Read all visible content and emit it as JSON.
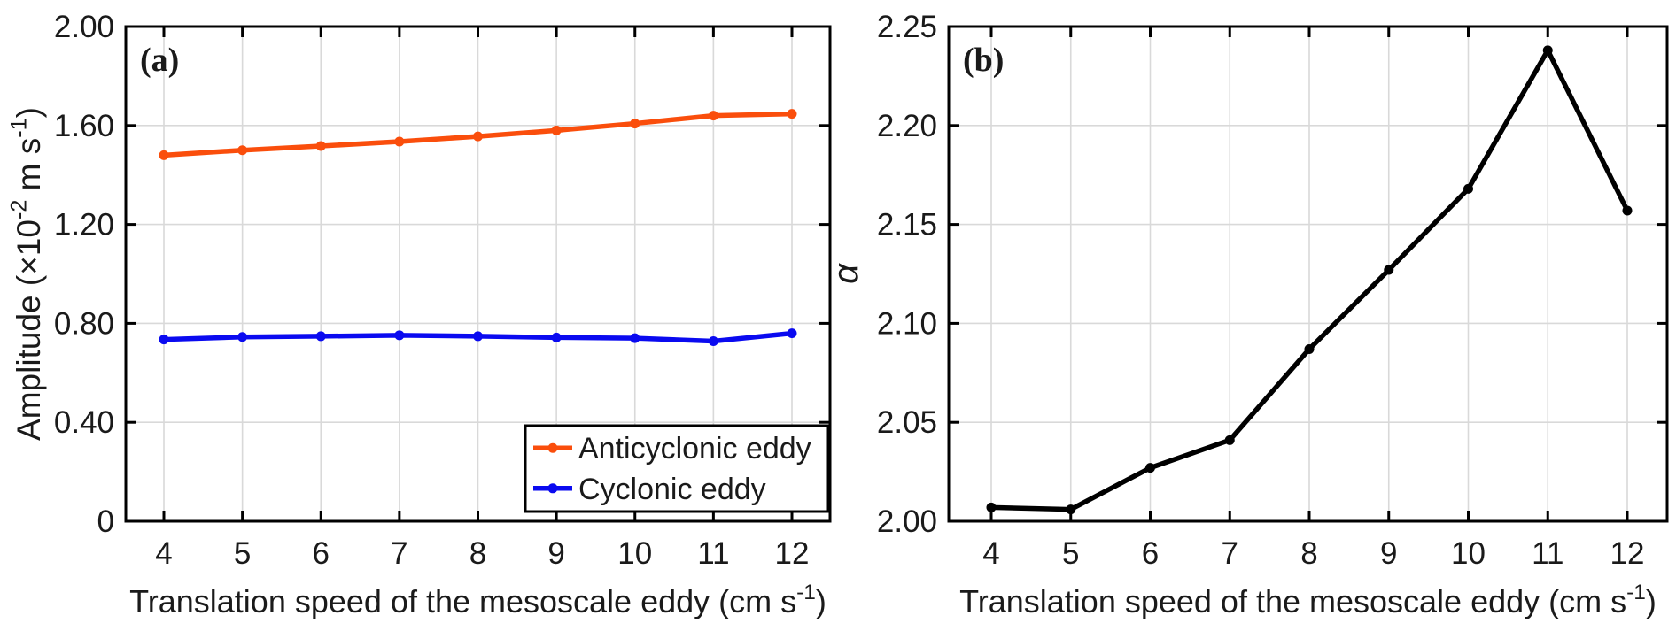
{
  "figure": {
    "background": "#ffffff",
    "text_color": "#1a1a1a",
    "grid_color": "#d9d9d9",
    "axis_color": "#000000"
  },
  "chart_data": [
    {
      "type": "line",
      "panel_label": "(a)",
      "x": [
        4,
        5,
        6,
        7,
        8,
        9,
        10,
        11,
        12
      ],
      "series": [
        {
          "name": "Anticyclonic eddy",
          "color": "#FA4E0C",
          "values": [
            1.48,
            1.5,
            1.517,
            1.535,
            1.556,
            1.58,
            1.608,
            1.64,
            1.647
          ]
        },
        {
          "name": "Cyclonic eddy",
          "color": "#0A0AF0",
          "values": [
            0.735,
            0.745,
            0.748,
            0.752,
            0.748,
            0.743,
            0.74,
            0.728,
            0.76
          ]
        }
      ],
      "xlabel": "Translation speed of the mesoscale eddy (cm s⁻¹)",
      "ylabel": "Amplitude (×10⁻² m s⁻¹)",
      "ylabel_italic": false,
      "xlim": [
        3.5,
        12.5
      ],
      "ylim": [
        0,
        2.0
      ],
      "xticks": [
        4,
        5,
        6,
        7,
        8,
        9,
        10,
        11,
        12
      ],
      "yticks": [
        0,
        0.4,
        0.8,
        1.2,
        1.6,
        2.0
      ],
      "ytick_labels": [
        "0",
        "0.40",
        "0.80",
        "1.20",
        "1.60",
        "2.00"
      ],
      "grid": true,
      "legend": {
        "position": "bottom-right",
        "entries": [
          "Anticyclonic eddy",
          "Cyclonic eddy"
        ]
      }
    },
    {
      "type": "line",
      "panel_label": "(b)",
      "x": [
        4,
        5,
        6,
        7,
        8,
        9,
        10,
        11,
        12
      ],
      "series": [
        {
          "name": "alpha",
          "color": "#000000",
          "values": [
            2.007,
            2.006,
            2.027,
            2.041,
            2.087,
            2.127,
            2.168,
            2.238,
            2.157
          ]
        }
      ],
      "xlabel": "Translation speed of the mesoscale eddy (cm s⁻¹)",
      "ylabel": "α",
      "ylabel_italic": true,
      "xlim": [
        3.5,
        12.5
      ],
      "ylim": [
        2.0,
        2.25
      ],
      "xticks": [
        4,
        5,
        6,
        7,
        8,
        9,
        10,
        11,
        12
      ],
      "yticks": [
        2.0,
        2.05,
        2.1,
        2.15,
        2.2,
        2.25
      ],
      "ytick_labels": [
        "2.00",
        "2.05",
        "2.10",
        "2.15",
        "2.20",
        "2.25"
      ],
      "grid": true,
      "legend": null
    }
  ]
}
